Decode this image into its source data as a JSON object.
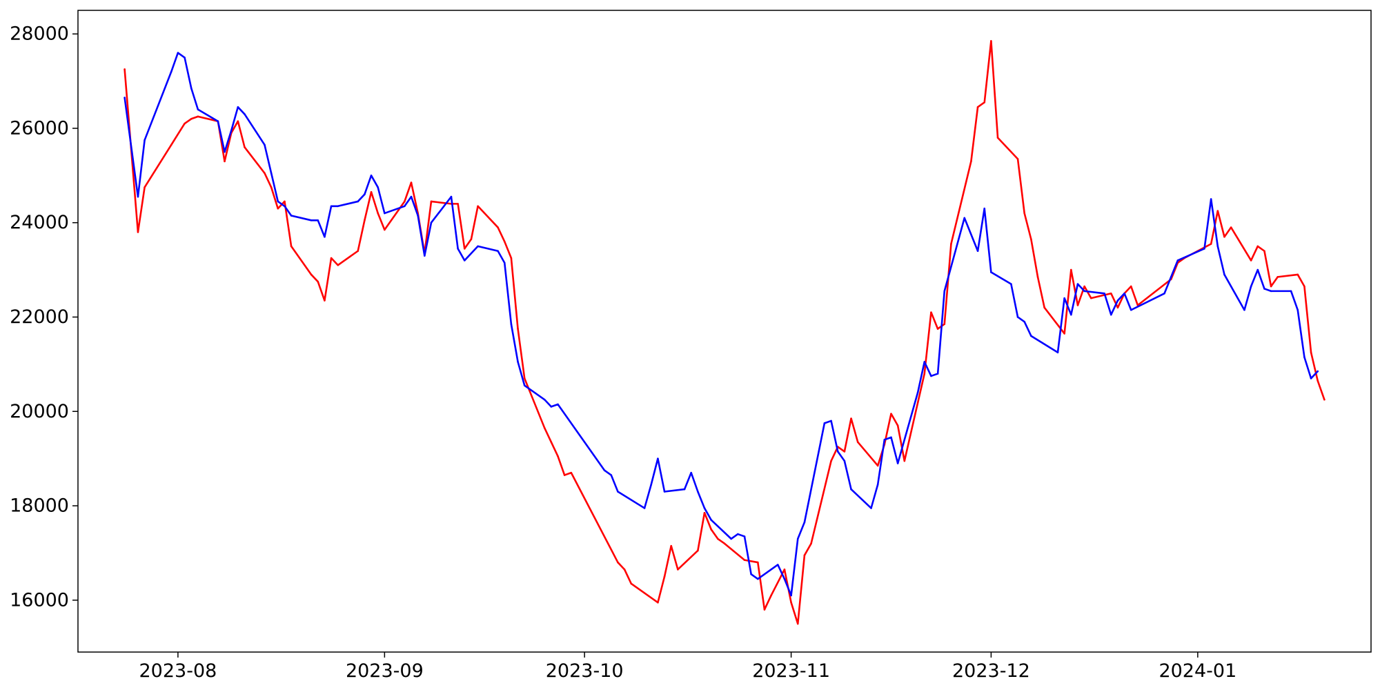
{
  "chart_data": {
    "type": "line",
    "title": "",
    "xlabel": "",
    "ylabel": "",
    "x_ticks": [
      "2023-08",
      "2023-09",
      "2023-10",
      "2023-11",
      "2023-12",
      "2024-01"
    ],
    "y_ticks": [
      16000,
      18000,
      20000,
      22000,
      24000,
      26000,
      28000
    ],
    "xlim": [
      "2023-07-17",
      "2024-01-27"
    ],
    "ylim": [
      14900,
      28500
    ],
    "grid": false,
    "legend": "none",
    "series": [
      {
        "color": "#ff0000",
        "points": [
          [
            "2023-07-24",
            27250
          ],
          [
            "2023-07-26",
            23800
          ],
          [
            "2023-07-27",
            24750
          ],
          [
            "2023-07-31",
            25650
          ],
          [
            "2023-08-02",
            26100
          ],
          [
            "2023-08-03",
            26200
          ],
          [
            "2023-08-04",
            26250
          ],
          [
            "2023-08-07",
            26150
          ],
          [
            "2023-08-08",
            25300
          ],
          [
            "2023-08-09",
            25900
          ],
          [
            "2023-08-10",
            26150
          ],
          [
            "2023-08-11",
            25600
          ],
          [
            "2023-08-14",
            25050
          ],
          [
            "2023-08-15",
            24750
          ],
          [
            "2023-08-16",
            24300
          ],
          [
            "2023-08-17",
            24450
          ],
          [
            "2023-08-18",
            23500
          ],
          [
            "2023-08-21",
            22900
          ],
          [
            "2023-08-22",
            22750
          ],
          [
            "2023-08-23",
            22350
          ],
          [
            "2023-08-24",
            23250
          ],
          [
            "2023-08-25",
            23100
          ],
          [
            "2023-08-28",
            23400
          ],
          [
            "2023-08-29",
            24050
          ],
          [
            "2023-08-30",
            24650
          ],
          [
            "2023-08-31",
            24200
          ],
          [
            "2023-09-01",
            23850
          ],
          [
            "2023-09-04",
            24450
          ],
          [
            "2023-09-05",
            24850
          ],
          [
            "2023-09-06",
            24200
          ],
          [
            "2023-09-07",
            23350
          ],
          [
            "2023-09-08",
            24450
          ],
          [
            "2023-09-11",
            24400
          ],
          [
            "2023-09-12",
            24400
          ],
          [
            "2023-09-13",
            23450
          ],
          [
            "2023-09-14",
            23650
          ],
          [
            "2023-09-15",
            24350
          ],
          [
            "2023-09-18",
            23900
          ],
          [
            "2023-09-19",
            23600
          ],
          [
            "2023-09-20",
            23250
          ],
          [
            "2023-09-21",
            21750
          ],
          [
            "2023-09-22",
            20700
          ],
          [
            "2023-09-25",
            19650
          ],
          [
            "2023-09-26",
            19350
          ],
          [
            "2023-09-27",
            19050
          ],
          [
            "2023-09-28",
            18650
          ],
          [
            "2023-09-29",
            18700
          ],
          [
            "2023-10-06",
            16800
          ],
          [
            "2023-10-07",
            16650
          ],
          [
            "2023-10-08",
            16350
          ],
          [
            "2023-10-12",
            15950
          ],
          [
            "2023-10-13",
            16500
          ],
          [
            "2023-10-14",
            17150
          ],
          [
            "2023-10-15",
            16650
          ],
          [
            "2023-10-18",
            17050
          ],
          [
            "2023-10-19",
            17850
          ],
          [
            "2023-10-20",
            17500
          ],
          [
            "2023-10-21",
            17300
          ],
          [
            "2023-10-22",
            17200
          ],
          [
            "2023-10-25",
            16850
          ],
          [
            "2023-10-27",
            16800
          ],
          [
            "2023-10-28",
            15800
          ],
          [
            "2023-10-29",
            16100
          ],
          [
            "2023-10-31",
            16650
          ],
          [
            "2023-11-01",
            15950
          ],
          [
            "2023-11-02",
            15500
          ],
          [
            "2023-11-03",
            16950
          ],
          [
            "2023-11-04",
            17200
          ],
          [
            "2023-11-07",
            18950
          ],
          [
            "2023-11-08",
            19250
          ],
          [
            "2023-11-09",
            19150
          ],
          [
            "2023-11-10",
            19850
          ],
          [
            "2023-11-11",
            19350
          ],
          [
            "2023-11-14",
            18850
          ],
          [
            "2023-11-15",
            19300
          ],
          [
            "2023-11-16",
            19950
          ],
          [
            "2023-11-17",
            19700
          ],
          [
            "2023-11-18",
            18950
          ],
          [
            "2023-11-21",
            20800
          ],
          [
            "2023-11-22",
            22100
          ],
          [
            "2023-11-23",
            21750
          ],
          [
            "2023-11-24",
            21850
          ],
          [
            "2023-11-25",
            23550
          ],
          [
            "2023-11-28",
            25300
          ],
          [
            "2023-11-29",
            26450
          ],
          [
            "2023-11-30",
            26550
          ],
          [
            "2023-12-01",
            27850
          ],
          [
            "2023-12-02",
            25800
          ],
          [
            "2023-12-05",
            25350
          ],
          [
            "2023-12-06",
            24200
          ],
          [
            "2023-12-07",
            23650
          ],
          [
            "2023-12-08",
            22850
          ],
          [
            "2023-12-09",
            22200
          ],
          [
            "2023-12-12",
            21650
          ],
          [
            "2023-12-13",
            23000
          ],
          [
            "2023-12-14",
            22250
          ],
          [
            "2023-12-15",
            22650
          ],
          [
            "2023-12-16",
            22400
          ],
          [
            "2023-12-19",
            22500
          ],
          [
            "2023-12-20",
            22200
          ],
          [
            "2023-12-21",
            22500
          ],
          [
            "2023-12-22",
            22650
          ],
          [
            "2023-12-23",
            22250
          ],
          [
            "2023-12-28",
            22800
          ],
          [
            "2023-12-29",
            23150
          ],
          [
            "2023-12-30",
            23250
          ],
          [
            "2024-01-03",
            23550
          ],
          [
            "2024-01-04",
            24250
          ],
          [
            "2024-01-05",
            23700
          ],
          [
            "2024-01-06",
            23900
          ],
          [
            "2024-01-09",
            23200
          ],
          [
            "2024-01-10",
            23500
          ],
          [
            "2024-01-11",
            23400
          ],
          [
            "2024-01-12",
            22650
          ],
          [
            "2024-01-13",
            22850
          ],
          [
            "2024-01-16",
            22900
          ],
          [
            "2024-01-17",
            22650
          ],
          [
            "2024-01-18",
            21250
          ],
          [
            "2024-01-19",
            20650
          ],
          [
            "2024-01-20",
            20250
          ]
        ]
      },
      {
        "color": "#0000ff",
        "points": [
          [
            "2023-07-24",
            26650
          ],
          [
            "2023-07-26",
            24550
          ],
          [
            "2023-07-27",
            25750
          ],
          [
            "2023-07-31",
            27200
          ],
          [
            "2023-08-01",
            27600
          ],
          [
            "2023-08-02",
            27500
          ],
          [
            "2023-08-03",
            26850
          ],
          [
            "2023-08-04",
            26400
          ],
          [
            "2023-08-07",
            26150
          ],
          [
            "2023-08-08",
            25500
          ],
          [
            "2023-08-09",
            25950
          ],
          [
            "2023-08-10",
            26450
          ],
          [
            "2023-08-11",
            26300
          ],
          [
            "2023-08-14",
            25650
          ],
          [
            "2023-08-15",
            25050
          ],
          [
            "2023-08-16",
            24450
          ],
          [
            "2023-08-17",
            24350
          ],
          [
            "2023-08-18",
            24150
          ],
          [
            "2023-08-21",
            24050
          ],
          [
            "2023-08-22",
            24050
          ],
          [
            "2023-08-23",
            23700
          ],
          [
            "2023-08-24",
            24350
          ],
          [
            "2023-08-25",
            24350
          ],
          [
            "2023-08-28",
            24450
          ],
          [
            "2023-08-29",
            24600
          ],
          [
            "2023-08-30",
            25000
          ],
          [
            "2023-08-31",
            24750
          ],
          [
            "2023-09-01",
            24200
          ],
          [
            "2023-09-04",
            24350
          ],
          [
            "2023-09-05",
            24550
          ],
          [
            "2023-09-06",
            24150
          ],
          [
            "2023-09-07",
            23300
          ],
          [
            "2023-09-08",
            24000
          ],
          [
            "2023-09-11",
            24550
          ],
          [
            "2023-09-12",
            23450
          ],
          [
            "2023-09-13",
            23200
          ],
          [
            "2023-09-15",
            23500
          ],
          [
            "2023-09-18",
            23400
          ],
          [
            "2023-09-19",
            23150
          ],
          [
            "2023-09-20",
            21850
          ],
          [
            "2023-09-21",
            21050
          ],
          [
            "2023-09-22",
            20550
          ],
          [
            "2023-09-25",
            20250
          ],
          [
            "2023-09-26",
            20100
          ],
          [
            "2023-09-27",
            20150
          ],
          [
            "2023-10-04",
            18750
          ],
          [
            "2023-10-05",
            18650
          ],
          [
            "2023-10-06",
            18300
          ],
          [
            "2023-10-10",
            17950
          ],
          [
            "2023-10-11",
            18450
          ],
          [
            "2023-10-12",
            19000
          ],
          [
            "2023-10-13",
            18300
          ],
          [
            "2023-10-16",
            18350
          ],
          [
            "2023-10-17",
            18700
          ],
          [
            "2023-10-18",
            18300
          ],
          [
            "2023-10-19",
            17950
          ],
          [
            "2023-10-20",
            17700
          ],
          [
            "2023-10-23",
            17300
          ],
          [
            "2023-10-24",
            17400
          ],
          [
            "2023-10-25",
            17350
          ],
          [
            "2023-10-26",
            16550
          ],
          [
            "2023-10-27",
            16450
          ],
          [
            "2023-10-30",
            16750
          ],
          [
            "2023-10-31",
            16450
          ],
          [
            "2023-11-01",
            16100
          ],
          [
            "2023-11-02",
            17300
          ],
          [
            "2023-11-03",
            17650
          ],
          [
            "2023-11-06",
            19750
          ],
          [
            "2023-11-07",
            19800
          ],
          [
            "2023-11-08",
            19150
          ],
          [
            "2023-11-09",
            18950
          ],
          [
            "2023-11-10",
            18350
          ],
          [
            "2023-11-13",
            17950
          ],
          [
            "2023-11-14",
            18450
          ],
          [
            "2023-11-15",
            19400
          ],
          [
            "2023-11-16",
            19450
          ],
          [
            "2023-11-17",
            18900
          ],
          [
            "2023-11-20",
            20400
          ],
          [
            "2023-11-21",
            21050
          ],
          [
            "2023-11-22",
            20750
          ],
          [
            "2023-11-23",
            20800
          ],
          [
            "2023-11-24",
            22550
          ],
          [
            "2023-11-27",
            24100
          ],
          [
            "2023-11-29",
            23400
          ],
          [
            "2023-11-30",
            24300
          ],
          [
            "2023-12-01",
            22950
          ],
          [
            "2023-12-04",
            22700
          ],
          [
            "2023-12-05",
            22000
          ],
          [
            "2023-12-06",
            21900
          ],
          [
            "2023-12-07",
            21600
          ],
          [
            "2023-12-11",
            21250
          ],
          [
            "2023-12-12",
            22400
          ],
          [
            "2023-12-13",
            22050
          ],
          [
            "2023-12-14",
            22700
          ],
          [
            "2023-12-15",
            22550
          ],
          [
            "2023-12-18",
            22500
          ],
          [
            "2023-12-19",
            22050
          ],
          [
            "2023-12-20",
            22350
          ],
          [
            "2023-12-21",
            22500
          ],
          [
            "2023-12-22",
            22150
          ],
          [
            "2023-12-27",
            22500
          ],
          [
            "2023-12-28",
            22850
          ],
          [
            "2023-12-29",
            23200
          ],
          [
            "2024-01-02",
            23450
          ],
          [
            "2024-01-03",
            24500
          ],
          [
            "2024-01-04",
            23500
          ],
          [
            "2024-01-05",
            22900
          ],
          [
            "2024-01-08",
            22150
          ],
          [
            "2024-01-09",
            22650
          ],
          [
            "2024-01-10",
            23000
          ],
          [
            "2024-01-11",
            22600
          ],
          [
            "2024-01-12",
            22550
          ],
          [
            "2024-01-15",
            22550
          ],
          [
            "2024-01-16",
            22150
          ],
          [
            "2024-01-17",
            21150
          ],
          [
            "2024-01-18",
            20700
          ],
          [
            "2024-01-19",
            20850
          ]
        ]
      }
    ]
  }
}
